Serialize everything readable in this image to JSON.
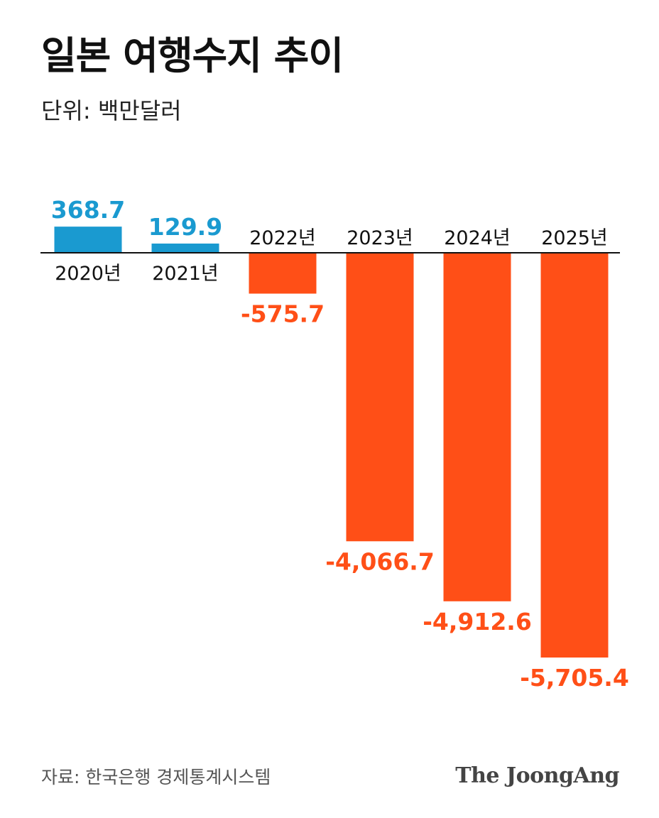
{
  "header": {
    "title": "일본 여행수지 추이",
    "unit": "단위: 백만달러"
  },
  "footer": {
    "source": "자료: 한국은행 경제통계시스템",
    "logo_text": "The JoongAng"
  },
  "colors": {
    "positive": "#1a9ad0",
    "negative": "#ff4f17",
    "axis": "#111111"
  },
  "chart_data": {
    "type": "bar",
    "categories": [
      "2020년",
      "2021년",
      "2022년",
      "2023년",
      "2024년",
      "2025년"
    ],
    "values": [
      368.7,
      129.9,
      -575.7,
      -4066.7,
      -4912.6,
      -5705.4
    ],
    "value_labels": [
      "368.7",
      "129.9",
      "-575.7",
      "-4,066.7",
      "-4,912.6",
      "-5,705.4"
    ],
    "title": "일본 여행수지 추이",
    "ylabel": "단위: 백만달러",
    "grid": false,
    "legend": "none"
  }
}
